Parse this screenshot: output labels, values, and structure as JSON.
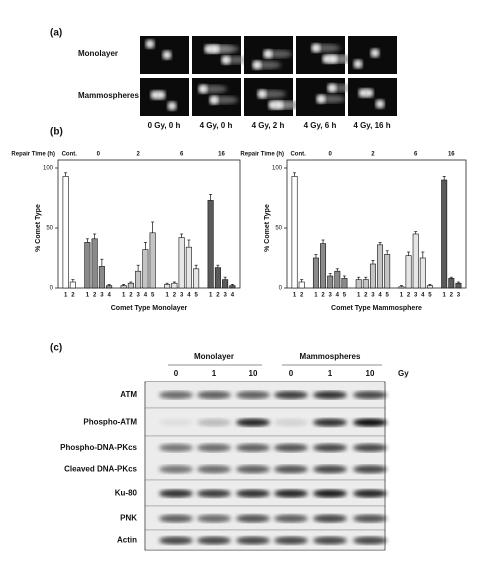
{
  "panel_a": {
    "label": "(a)",
    "rows": [
      "Monolayer",
      "Mammospheres"
    ],
    "columns": [
      "0 Gy, 0 h",
      "4 Gy, 0 h",
      "4 Gy, 2 h",
      "4 Gy, 6 h",
      "4 Gy, 16 h"
    ]
  },
  "panel_b": {
    "label": "(b)"
  },
  "chart_data": [
    {
      "type": "bar",
      "group_title": "Repair Time (h)",
      "ylabel": "% Comet Type",
      "xlabel": "Comet Type Monolayer",
      "ylim": [
        0,
        100
      ],
      "yticks": [
        0,
        50,
        100
      ],
      "groups": [
        {
          "name": "Cont.",
          "color": "#ffffff",
          "categories": [
            "1",
            "2"
          ],
          "values": [
            93,
            5
          ],
          "errors": [
            3,
            2
          ]
        },
        {
          "name": "0",
          "color": "#8a8a8a",
          "categories": [
            "1",
            "2",
            "3",
            "4"
          ],
          "values": [
            38,
            41,
            18,
            2
          ],
          "errors": [
            3,
            4,
            6,
            1
          ]
        },
        {
          "name": "2",
          "color": "#c4c4c4",
          "categories": [
            "1",
            "2",
            "3",
            "4",
            "5"
          ],
          "values": [
            2,
            4,
            14,
            32,
            46
          ],
          "errors": [
            1,
            1,
            5,
            6,
            9
          ]
        },
        {
          "name": "6",
          "color": "#e6e6e6",
          "categories": [
            "1",
            "2",
            "3",
            "4",
            "5"
          ],
          "values": [
            3,
            4,
            42,
            34,
            16
          ],
          "errors": [
            1,
            1,
            3,
            6,
            3
          ]
        },
        {
          "name": "16",
          "color": "#5a5a5a",
          "categories": [
            "1",
            "2",
            "3",
            "4"
          ],
          "values": [
            73,
            17,
            7,
            2
          ],
          "errors": [
            5,
            2,
            2,
            1
          ]
        }
      ]
    },
    {
      "type": "bar",
      "group_title": "Repair Time (h)",
      "ylabel": "% Comet Type",
      "xlabel": "Comet Type Mammosphere",
      "ylim": [
        0,
        100
      ],
      "yticks": [
        0,
        50,
        100
      ],
      "groups": [
        {
          "name": "Cont.",
          "color": "#ffffff",
          "categories": [
            "1",
            "2"
          ],
          "values": [
            93,
            5
          ],
          "errors": [
            3,
            2
          ]
        },
        {
          "name": "0",
          "color": "#8a8a8a",
          "categories": [
            "1",
            "2",
            "3",
            "4",
            "5"
          ],
          "values": [
            25,
            37,
            10,
            14,
            8
          ],
          "errors": [
            3,
            3,
            2,
            2,
            2
          ]
        },
        {
          "name": "2",
          "color": "#c4c4c4",
          "categories": [
            "1",
            "2",
            "3",
            "4",
            "5"
          ],
          "values": [
            7,
            7,
            20,
            36,
            28
          ],
          "errors": [
            2,
            2,
            3,
            2,
            3
          ]
        },
        {
          "name": "6",
          "color": "#e6e6e6",
          "categories": [
            "1",
            "2",
            "3",
            "4",
            "5"
          ],
          "values": [
            1,
            27,
            45,
            25,
            2
          ],
          "errors": [
            1,
            3,
            2,
            5,
            1
          ]
        },
        {
          "name": "16",
          "color": "#5a5a5a",
          "categories": [
            "1",
            "2",
            "3"
          ],
          "values": [
            90,
            8,
            4
          ],
          "errors": [
            3,
            1,
            1
          ]
        }
      ]
    }
  ],
  "panel_c": {
    "label": "(c)",
    "groups": [
      "Monolayer",
      "Mammospheres"
    ],
    "doses": [
      "0",
      "1",
      "10",
      "0",
      "1",
      "10"
    ],
    "dose_unit": "Gy",
    "rows": [
      "ATM",
      "Phospho-ATM",
      "Phospho-DNA-PKcs",
      "Cleaved DNA-PKcs",
      "Ku-80",
      "PNK",
      "Actin"
    ]
  }
}
